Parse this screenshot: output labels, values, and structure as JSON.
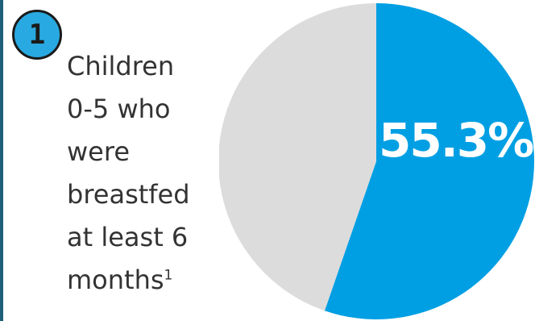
{
  "badge": {
    "number": "1"
  },
  "caption": {
    "lines": [
      "Children",
      "0-5 who",
      "were",
      "breastfed",
      "at least 6",
      "months"
    ],
    "footnote": "1"
  },
  "colors": {
    "highlight": "#009fe3",
    "remainder": "#dcdcdc",
    "badge": "#29a9e1",
    "text": "#333333"
  },
  "chart_data": {
    "type": "pie",
    "slices": [
      {
        "value": 55.3,
        "color": "#009fe3"
      },
      {
        "value": 44.7,
        "color": "#dcdcdc"
      }
    ],
    "data_labels": [
      {
        "text": "55.3%",
        "slice": 0
      }
    ],
    "start_angle": "12 o'clock",
    "direction": "clockwise"
  }
}
